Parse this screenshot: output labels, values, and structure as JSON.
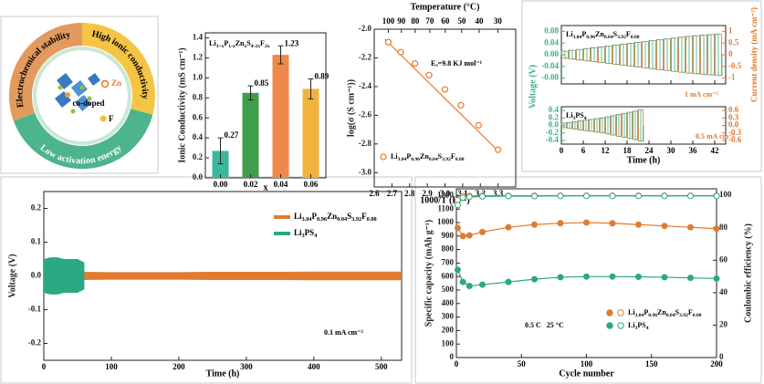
{
  "schematic": {
    "top_right": "High ionic conductivity",
    "left": "Electrochemical stability",
    "bottom": "Low activation energy",
    "center": "co-doped",
    "dopant1": "Zn",
    "dopant2": "F"
  },
  "chart_data": [
    {
      "type": "bar",
      "title": "Li3+xP1-xZnxS4-2xF2x",
      "xlabel": "x",
      "ylabel": "Ionic Conductivity (mS cm⁻¹)",
      "categories": [
        "0.00",
        "0.02",
        "0.04",
        "0.06"
      ],
      "values": [
        0.27,
        0.85,
        1.23,
        0.89
      ],
      "errors": [
        0.13,
        0.07,
        0.09,
        0.1
      ],
      "colors": [
        "#3ab89e",
        "#3f9e4a",
        "#f0884a",
        "#f2b33c"
      ],
      "ylim": [
        0,
        1.45
      ],
      "yticks": [
        {
          "value": 0,
          "label": "0.0"
        },
        0.2,
        0.4,
        0.6,
        0.8,
        {
          "value": 1,
          "label": "1.0"
        },
        1.2,
        1.4
      ]
    },
    {
      "type": "scatter",
      "xlabel": "1000/T (K⁻¹)",
      "ylabel": "log(σ (S cm⁻¹))",
      "x2label": "Temperature (°C)",
      "annotation": "Eₐ=9.8 KJ mol⁻¹",
      "series": [
        {
          "name": "Li3.04P0.96Zn0.04S3.92F0.08",
          "color": "#e8782a",
          "x": [
            2.68,
            2.75,
            2.83,
            2.91,
            3.0,
            3.09,
            3.19,
            3.3
          ],
          "values": [
            -2.09,
            -2.16,
            -2.24,
            -2.32,
            -2.42,
            -2.53,
            -2.67,
            -2.84
          ]
        }
      ],
      "fit": {
        "x": [
          2.66,
          3.31
        ],
        "values": [
          -2.07,
          -2.86
        ]
      },
      "xlim": [
        2.6,
        3.4
      ],
      "xticks": [
        2.6,
        2.7,
        2.8,
        2.9,
        {
          "value": 3,
          "label": "3.0"
        },
        3.1,
        3.2,
        3.3
      ],
      "ylim": [
        -3.1,
        -2.0
      ],
      "yticks": [
        {
          "value": -3,
          "label": "-3.0"
        },
        -2.8,
        -2.6,
        -2.4,
        -2.2,
        {
          "value": -2,
          "label": "-2.0"
        }
      ],
      "x2ticks": [
        100,
        90,
        80,
        70,
        60,
        50,
        40,
        30
      ]
    },
    {
      "type": "cycling",
      "label": "Li3.04P0.96Zn0.04S3.92F0.08",
      "ylabel": "Voltage (V)",
      "y2label": "Current density (mA cm⁻²)",
      "annotation": "1 mA cm⁻²",
      "color": "#3cb08a",
      "color2": "#e07b30",
      "x": [
        0,
        2,
        4,
        6,
        8,
        10,
        12,
        14,
        16,
        18,
        20,
        22,
        24,
        26,
        28,
        30,
        32,
        34,
        36,
        38,
        40,
        42
      ],
      "values": [
        0.012,
        0.015,
        0.018,
        0.021,
        0.024,
        0.027,
        0.03,
        0.033,
        0.036,
        0.039,
        0.042,
        0.045,
        0.048,
        0.051,
        0.054,
        0.057,
        0.06,
        0.063,
        0.065,
        0.067,
        0.069,
        0.071
      ],
      "xlim": [
        0,
        45
      ],
      "ylim": [
        -0.1,
        0.1
      ],
      "yticks": [
        -0.08,
        -0.04,
        {
          "value": 0,
          "label": "0.00"
        },
        0.04,
        0.08
      ],
      "y2lim": [
        -1.25,
        1.25
      ],
      "y2ticks": [
        -1,
        -0.5,
        0,
        0.5,
        1
      ]
    },
    {
      "type": "cycling",
      "label": "Li3PS4",
      "xlabel": "Time (h)",
      "annotation": "0.5 mA cm⁻²",
      "color": "#3cb08a",
      "color2": "#e07b30",
      "x": [
        0,
        1.5,
        3,
        4.5,
        6,
        7.5,
        9,
        10.5,
        12,
        13.5,
        15,
        16.5,
        18,
        19.5,
        21
      ],
      "values": [
        0.06,
        0.08,
        0.1,
        0.12,
        0.14,
        0.16,
        0.18,
        0.2,
        0.23,
        0.26,
        0.29,
        0.32,
        0.35,
        0.38,
        0.42
      ],
      "xlim": [
        0,
        45
      ],
      "xticks": [
        0,
        6,
        12,
        18,
        24,
        30,
        36,
        42
      ],
      "ylim": [
        -0.5,
        0.5
      ],
      "yticks": [
        -0.4,
        -0.2,
        {
          "value": 0,
          "label": "0.0"
        },
        0.2,
        0.4
      ],
      "y2lim": [
        -0.75,
        0.75
      ],
      "y2ticks": [
        -0.6,
        -0.3,
        {
          "value": 0,
          "label": "0.0"
        },
        0.3,
        0.6
      ]
    },
    {
      "type": "area",
      "xlabel": "Time (h)",
      "ylabel": "Voltage (V)",
      "annotation": "0.1 mA cm⁻²",
      "series": [
        {
          "name": "Li3.04P0.96Zn0.04S3.92F0.08",
          "color": "#e07b30",
          "x": [
            0,
            50,
            100,
            150,
            200,
            250,
            300,
            350,
            400,
            450,
            500,
            530
          ],
          "values": [
            0.012,
            0.012,
            0.011,
            0.011,
            0.011,
            0.012,
            0.012,
            0.012,
            0.013,
            0.013,
            0.013,
            0.013
          ]
        },
        {
          "name": "Li3PS4",
          "color": "#2aa882",
          "x": [
            0,
            10,
            20,
            30,
            40,
            50,
            60
          ],
          "values": [
            0.05,
            0.055,
            0.055,
            0.05,
            0.05,
            0.05,
            0.04
          ]
        }
      ],
      "xlim": [
        0,
        530
      ],
      "xticks": [
        0,
        100,
        200,
        300,
        400,
        500
      ],
      "ylim": [
        -0.25,
        0.25
      ],
      "yticks": [
        -0.2,
        -0.1,
        {
          "value": 0,
          "label": "0.0"
        },
        0.1,
        0.2
      ]
    },
    {
      "type": "line",
      "xlabel": "Cycle number",
      "ylabel": "Specific capacity (mAh g⁻¹)",
      "y2label": "Coulombic efficiency (%)",
      "annotation": "0.5 C   25 °C",
      "series": [
        {
          "name": "Li3.04P0.96Zn0.04S3.92F0.08",
          "color": "#e07b30",
          "x": [
            1,
            5,
            10,
            20,
            40,
            60,
            80,
            100,
            120,
            140,
            160,
            180,
            200
          ],
          "values": [
            960,
            900,
            905,
            930,
            965,
            985,
            995,
            1000,
            995,
            985,
            975,
            965,
            955
          ]
        },
        {
          "name": "Li3PS4",
          "color": "#2aa882",
          "x": [
            1,
            5,
            10,
            20,
            40,
            60,
            80,
            100,
            120,
            140,
            160,
            180,
            200
          ],
          "values": [
            650,
            560,
            530,
            540,
            560,
            580,
            595,
            600,
            600,
            598,
            595,
            590,
            585
          ]
        },
        {
          "color": "#e07b30",
          "axis": "y2",
          "x": [
            1,
            5,
            10,
            20,
            40,
            60,
            80,
            100,
            120,
            140,
            160,
            180,
            200
          ],
          "values": [
            97,
            99.5,
            99.6,
            99.7,
            99.7,
            99.8,
            99.8,
            99.8,
            99.8,
            99.8,
            99.8,
            99.8,
            99.8
          ]
        },
        {
          "color": "#2aa882",
          "axis": "y2",
          "x": [
            1,
            5,
            10,
            20,
            40,
            60,
            80,
            100,
            120,
            140,
            160,
            180,
            200
          ],
          "values": [
            94,
            98.5,
            99,
            99.3,
            99.5,
            99.5,
            99.6,
            99.6,
            99.6,
            99.6,
            99.6,
            99.6,
            99.6
          ]
        }
      ],
      "xlim": [
        0,
        200
      ],
      "xticks": [
        0,
        50,
        100,
        150,
        200
      ],
      "ylim": [
        0,
        1250
      ],
      "yticks": [
        0,
        100,
        200,
        300,
        400,
        500,
        600,
        700,
        800,
        900,
        1000,
        1100,
        1200
      ],
      "y2lim": [
        0,
        104
      ],
      "y2ticks": [
        0,
        20,
        40,
        60,
        80,
        100
      ]
    }
  ]
}
